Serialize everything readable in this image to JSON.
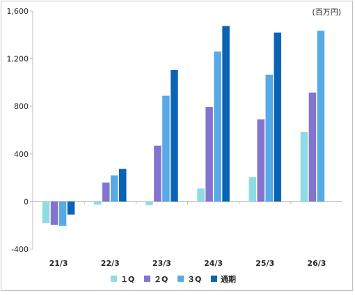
{
  "chart_data": {
    "type": "bar",
    "unit_label": "(百万円)",
    "categories": [
      "21/3",
      "22/3",
      "23/3",
      "24/3",
      "25/3",
      "26/3"
    ],
    "ylim": [
      -400,
      1600
    ],
    "yticks": [
      -400,
      0,
      400,
      800,
      1200,
      1600
    ],
    "ytick_labels": [
      "-400",
      "0",
      "400",
      "800",
      "1,200",
      "1,600"
    ],
    "legend_position": "bottom",
    "grid": false,
    "series": [
      {
        "name": "1Q",
        "label": "１Q",
        "color": "#8fdbe3",
        "values": [
          -180,
          -25,
          -30,
          110,
          205,
          585
        ]
      },
      {
        "name": "2Q",
        "label": "２Q",
        "color": "#8473cf",
        "values": [
          -195,
          160,
          470,
          795,
          690,
          915
        ]
      },
      {
        "name": "3Q",
        "label": "３Q",
        "color": "#57aae6",
        "values": [
          -205,
          220,
          890,
          1260,
          1065,
          1435
        ]
      },
      {
        "name": "通期",
        "label": "通期",
        "color": "#0a63b5",
        "values": [
          -110,
          275,
          1105,
          1475,
          1420,
          null
        ]
      }
    ]
  }
}
